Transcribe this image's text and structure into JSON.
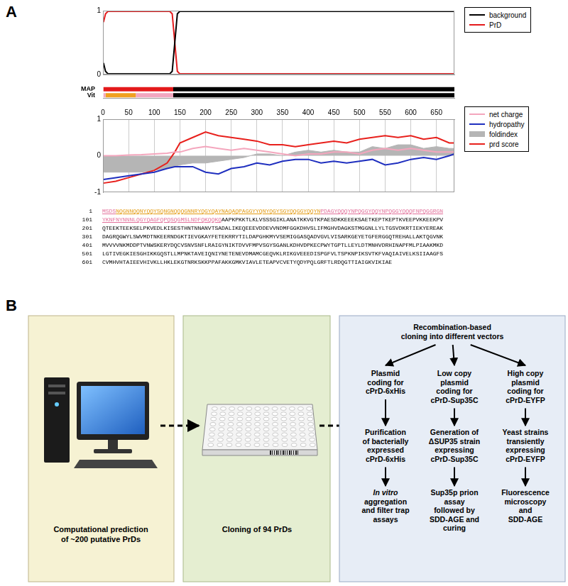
{
  "panel_labels": [
    "A",
    "B"
  ],
  "chart_data": [
    {
      "type": "line",
      "x": [
        1,
        5,
        10,
        130,
        135,
        140,
        145,
        150,
        685
      ],
      "series": [
        {
          "name": "background",
          "color": "#000000",
          "values": [
            0.18,
            0.05,
            0.01,
            0.01,
            0.05,
            0.5,
            0.95,
            0.99,
            0.99
          ]
        },
        {
          "name": "PrD",
          "color": "#e41a1c",
          "values": [
            0.82,
            0.95,
            0.99,
            0.99,
            0.95,
            0.5,
            0.05,
            0.01,
            0.01
          ]
        }
      ],
      "xlim": [
        0,
        685
      ],
      "ylim": [
        0,
        1
      ],
      "yticks": [
        0,
        1
      ],
      "grid": false,
      "tick_labels": "y",
      "legend": "top right"
    },
    {
      "type": "bar",
      "orientation": "horizontal",
      "categories": [
        "MAP",
        "Vit"
      ],
      "segments": [
        {
          "category": "MAP",
          "start": 1,
          "end": 137,
          "color": "#e41a1c"
        },
        {
          "category": "MAP",
          "start": 137,
          "end": 685,
          "color": "#000000"
        },
        {
          "category": "Vit",
          "start": 1,
          "end": 5,
          "color": "#f2a7c0"
        },
        {
          "category": "Vit",
          "start": 5,
          "end": 64,
          "color": "#f0a020"
        },
        {
          "category": "Vit",
          "start": 64,
          "end": 137,
          "color": "#f2a7c0"
        },
        {
          "category": "Vit",
          "start": 137,
          "end": 685,
          "color": "#000000"
        }
      ],
      "xlim": [
        0,
        685
      ],
      "grid": false,
      "tick_labels": "y"
    },
    {
      "type": "line",
      "x": [
        1,
        25,
        50,
        75,
        100,
        125,
        140,
        150,
        175,
        200,
        225,
        250,
        275,
        300,
        325,
        350,
        375,
        400,
        425,
        450,
        475,
        500,
        525,
        550,
        575,
        600,
        625,
        650,
        675,
        685
      ],
      "series": [
        {
          "name": "net charge",
          "color": "#f4a6bd",
          "values": [
            0,
            0,
            0.02,
            0.03,
            0.05,
            0.07,
            0.1,
            0.1,
            0.2,
            0.25,
            0.2,
            0.15,
            0.2,
            0.15,
            0.1,
            0.05,
            0,
            0.05,
            0.05,
            0.1,
            0.1,
            0.05,
            0.15,
            0.2,
            0.15,
            0.2,
            0.15,
            0.1,
            0.1,
            0.1
          ]
        },
        {
          "name": "hydropathy",
          "color": "#1f2fbf",
          "values": [
            -0.65,
            -0.6,
            -0.55,
            -0.5,
            -0.45,
            -0.35,
            -0.3,
            -0.3,
            -0.3,
            -0.45,
            -0.5,
            -0.35,
            -0.3,
            -0.2,
            -0.25,
            -0.15,
            -0.1,
            -0.1,
            -0.2,
            -0.15,
            -0.2,
            -0.15,
            -0.1,
            -0.25,
            -0.2,
            -0.1,
            -0.05,
            -0.1,
            0,
            0.05
          ]
        },
        {
          "name": "foldindex",
          "color": "#b5b5b5",
          "type": "area",
          "values": [
            -0.45,
            -0.45,
            -0.45,
            -0.45,
            -0.4,
            -0.35,
            -0.3,
            -0.25,
            -0.2,
            -0.2,
            -0.15,
            -0.1,
            -0.05,
            0.05,
            0.05,
            0,
            0.1,
            0.15,
            0.1,
            0.15,
            0.1,
            0.1,
            0.25,
            0.2,
            0.3,
            0.3,
            0.2,
            0.25,
            0.2,
            0.2
          ]
        },
        {
          "name": "prd score",
          "color": "#e8201c",
          "values": [
            -0.75,
            -0.7,
            -0.6,
            -0.5,
            -0.4,
            -0.2,
            0.1,
            0.35,
            0.5,
            0.65,
            0.55,
            0.5,
            0.45,
            0.4,
            0.3,
            0.3,
            0.25,
            0.3,
            0.35,
            0.4,
            0.35,
            0.45,
            0.5,
            0.55,
            0.5,
            0.55,
            0.45,
            0.5,
            0.35,
            0.35
          ]
        }
      ],
      "xlim": [
        0,
        685
      ],
      "xticks": [
        0,
        50,
        100,
        150,
        200,
        250,
        300,
        350,
        400,
        450,
        500,
        550,
        600,
        650
      ],
      "ylim": [
        -1,
        1
      ],
      "yticks": [
        -1,
        0,
        1
      ],
      "grid": "x",
      "legend": "top right"
    }
  ],
  "sequence": [
    {
      "number": 1,
      "segments": [
        {
          "text": "MSDS",
          "color": "#e2709a"
        },
        {
          "text": "NQGNNQQNYQQYSQNGNQQQGNNRYQGYQAYNAQAQPAGGYYQNYQGYSGYQQGGYQQYN",
          "color": "#e39a10"
        },
        {
          "text": "PDAGYQQQYNPQGGYQQYNPQGGYQQQFNPQGGRGN",
          "color": "#e2709a"
        }
      ]
    },
    {
      "number": 101,
      "segments": [
        {
          "text": "YKNFNYNNNLQGYQAGFQPQSQGMSLNDFQKQQKQ",
          "color": "#e2709a"
        },
        {
          "text": "AAPKPKKTLKLVSSSGIKLANATKKVGTKPAESDKKEEEKSAETKEPTKEPTKVEEPVKKEEKPV",
          "color": "#000000"
        }
      ]
    },
    {
      "number": 201,
      "segments": [
        {
          "text": "QTEEKTEEKSELPKVEDLKISESTHNTNNANVTSADALIKEQEEEVDDEVVNDMFGGKDHVSLIFMGHVDAGKSTMGGNLLYLTGSVDKRTIEKYEREAK",
          "color": "#000000"
        }
      ]
    },
    {
      "number": 301,
      "segments": [
        {
          "text": "DAGRQGWYLSWVMDTNKEERNDGKTIEVGKAYFETEKRRYTILDAPGHKMYVSEMIGGASQADVGVLVISARKGEYETGFERGGQTREHALLAKTQGVNK",
          "color": "#000000"
        }
      ]
    },
    {
      "number": 401,
      "segments": [
        {
          "text": "MVVVVNKMDDPTVNWSKERYDQCVSNVSNFLRAIGYNIKTDVVFMPVSGYSGANLKDHVDPKECPWYTGPTLLEYLDTMNHVDRHINAPFMLPIAAKMKD",
          "color": "#000000"
        }
      ]
    },
    {
      "number": 501,
      "segments": [
        {
          "text": "LGTIVEGKIESGHIKKGQSTLLMPNKTAVEIQNIYNETENEVDMAMCGEQVKLRIKGVEEEDISPGFVLTSPKNPIKSVTKFVAQIAIVELKSIIAAGFS",
          "color": "#000000"
        }
      ]
    },
    {
      "number": 601,
      "segments": [
        {
          "text": "CVMHVHTAIEEVHIVKLLHKLEKGTNRKSKKPPAFAKKGMKVIAVLETEAPVCVETYQDYPQLGRFTLRDQGTTIAIGKVIKIAE",
          "color": "#000000"
        }
      ]
    }
  ],
  "workflow": {
    "boxes": [
      {
        "lines": [
          "Computational prediction",
          "of ~200 putative PrDs"
        ]
      },
      {
        "lines": [
          "Cloning of 94 PrDs"
        ]
      },
      {
        "header": [
          "Recombination-based",
          "cloning into different vectors"
        ],
        "branches": [
          [
            {
              "lines": [
                "Plasmid",
                "coding for",
                "cPrD-6xHis"
              ]
            },
            {
              "lines": [
                "Purification",
                "of bacterially",
                "expressed",
                "cPrD-6xHis"
              ]
            },
            {
              "lines": [
                {
                  "text": "In vitro",
                  "style": "italic"
                },
                "aggregation",
                "and filter trap",
                "assays"
              ]
            }
          ],
          [
            {
              "lines": [
                "Low copy",
                "plasmid",
                "coding for",
                "cPrD-Sup35C"
              ]
            },
            {
              "lines": [
                "Generation of",
                "ΔSUP35 strain",
                "expressing",
                "cPrD-Sup35C"
              ]
            },
            {
              "lines": [
                "Sup35p prion",
                "assay",
                "followed by",
                "SDD-AGE and",
                "curing"
              ]
            }
          ],
          [
            {
              "lines": [
                "High copy",
                "plasmid",
                "coding for",
                "cPrD-EYFP"
              ]
            },
            {
              "lines": [
                "Yeast strains",
                "transiently",
                "expressing",
                "cPrD-EYFP"
              ]
            },
            {
              "lines": [
                "Fluorescence",
                "microscopy",
                "and",
                "SDD-AGE"
              ]
            }
          ]
        ]
      }
    ]
  }
}
